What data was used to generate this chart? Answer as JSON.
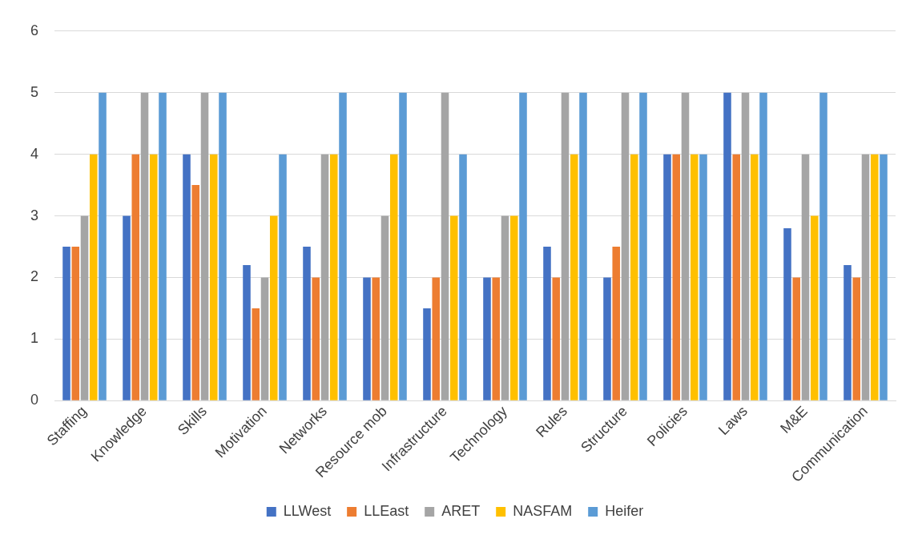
{
  "chart_data": {
    "type": "bar",
    "categories": [
      "Staffing",
      "Knowledge",
      "Skills",
      "Motivation",
      "Networks",
      "Resource mob",
      "Infrastructure",
      "Technology",
      "Rules",
      "Structure",
      "Policies",
      "Laws",
      "M&E",
      "Communication"
    ],
    "series": [
      {
        "name": "LLWest",
        "color": "#4472c4",
        "values": [
          2.5,
          3,
          4,
          2.2,
          2.5,
          2,
          1.5,
          2,
          2.5,
          2,
          4,
          5,
          2.8,
          2.2
        ]
      },
      {
        "name": "LLEast",
        "color": "#ed7d31",
        "values": [
          2.5,
          4,
          3.5,
          1.5,
          2,
          2,
          2,
          2,
          2,
          2.5,
          4,
          4,
          2,
          2
        ]
      },
      {
        "name": "ARET",
        "color": "#a5a5a5",
        "values": [
          3,
          5,
          5,
          2,
          4,
          3,
          5,
          3,
          5,
          5,
          5,
          5,
          4,
          4
        ]
      },
      {
        "name": "NASFAM",
        "color": "#ffc000",
        "values": [
          4,
          4,
          4,
          3,
          4,
          4,
          3,
          3,
          4,
          4,
          4,
          4,
          3,
          4
        ]
      },
      {
        "name": "Heifer",
        "color": "#5b9bd5",
        "values": [
          5,
          5,
          5,
          4,
          5,
          5,
          4,
          5,
          5,
          5,
          4,
          5,
          5,
          4
        ]
      }
    ],
    "ylim": [
      0,
      6
    ],
    "yticks": [
      0,
      1,
      2,
      3,
      4,
      5,
      6
    ],
    "grid": "y",
    "legend": "bottom"
  }
}
